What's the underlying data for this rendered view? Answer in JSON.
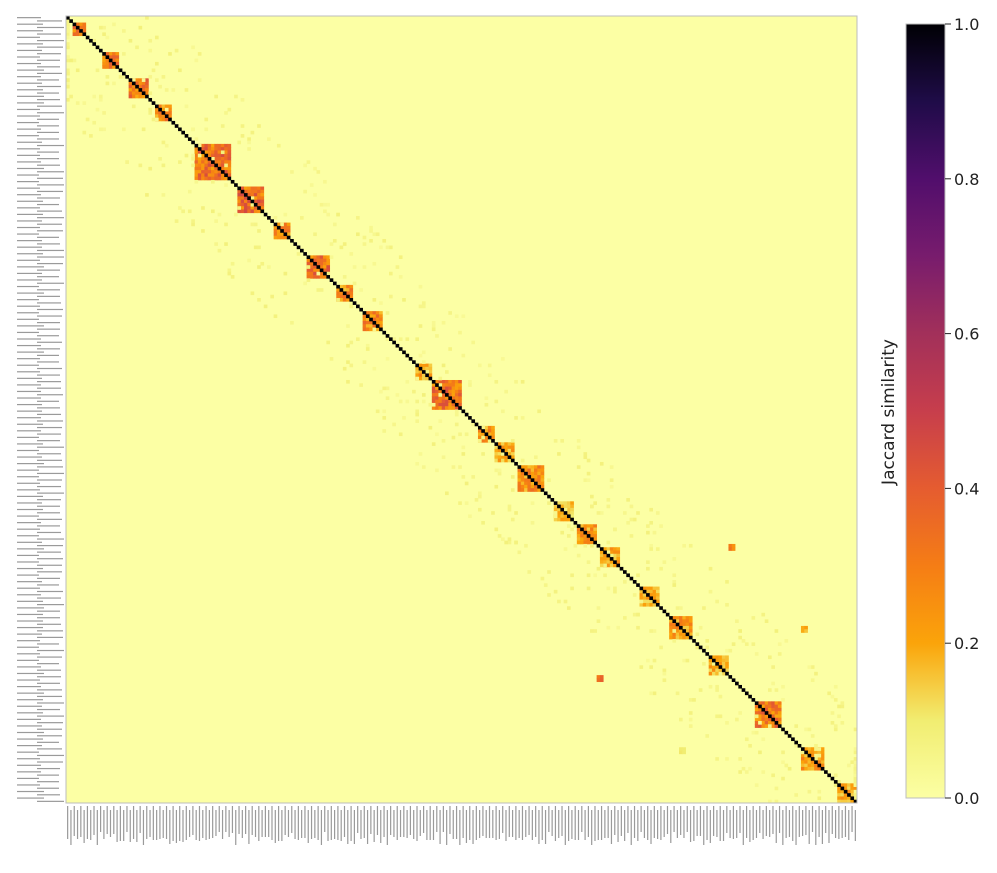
{
  "chart_data": {
    "type": "heatmap",
    "title": "",
    "xlabel": "",
    "ylabel": "",
    "matrix_size": 240,
    "row_labels_legible": false,
    "col_labels_legible": false,
    "diagonal_value": 1.0,
    "background_value": 0.0,
    "colormap": "inferno_r",
    "clusters": [
      {
        "start": 2,
        "end": 6,
        "value": 0.32
      },
      {
        "start": 11,
        "end": 16,
        "value": 0.33
      },
      {
        "start": 19,
        "end": 25,
        "value": 0.34
      },
      {
        "start": 27,
        "end": 32,
        "value": 0.3
      },
      {
        "start": 39,
        "end": 50,
        "value": 0.36
      },
      {
        "start": 52,
        "end": 60,
        "value": 0.38
      },
      {
        "start": 63,
        "end": 68,
        "value": 0.3
      },
      {
        "start": 73,
        "end": 80,
        "value": 0.36
      },
      {
        "start": 82,
        "end": 87,
        "value": 0.28
      },
      {
        "start": 90,
        "end": 96,
        "value": 0.3
      },
      {
        "start": 106,
        "end": 111,
        "value": 0.24
      },
      {
        "start": 111,
        "end": 120,
        "value": 0.36
      },
      {
        "start": 125,
        "end": 130,
        "value": 0.26
      },
      {
        "start": 130,
        "end": 136,
        "value": 0.22
      },
      {
        "start": 137,
        "end": 145,
        "value": 0.28
      },
      {
        "start": 148,
        "end": 154,
        "value": 0.18
      },
      {
        "start": 155,
        "end": 161,
        "value": 0.25
      },
      {
        "start": 162,
        "end": 168,
        "value": 0.22
      },
      {
        "start": 174,
        "end": 180,
        "value": 0.2
      },
      {
        "start": 183,
        "end": 190,
        "value": 0.26
      },
      {
        "start": 195,
        "end": 201,
        "value": 0.22
      },
      {
        "start": 209,
        "end": 217,
        "value": 0.35
      },
      {
        "start": 223,
        "end": 230,
        "value": 0.25
      },
      {
        "start": 234,
        "end": 240,
        "value": 0.22
      }
    ],
    "offdiagonal_spots": [
      {
        "row": 161,
        "col": 201,
        "value": 0.35
      },
      {
        "row": 201,
        "col": 161,
        "value": 0.4
      },
      {
        "row": 186,
        "col": 223,
        "value": 0.22
      },
      {
        "row": 223,
        "col": 186,
        "value": 0.12
      }
    ],
    "colorbar": {
      "label": "Jaccard similarity",
      "min": 0.0,
      "max": 1.0,
      "ticks": [
        "0.0",
        "0.2",
        "0.4",
        "0.6",
        "0.8",
        "1.0"
      ]
    }
  }
}
